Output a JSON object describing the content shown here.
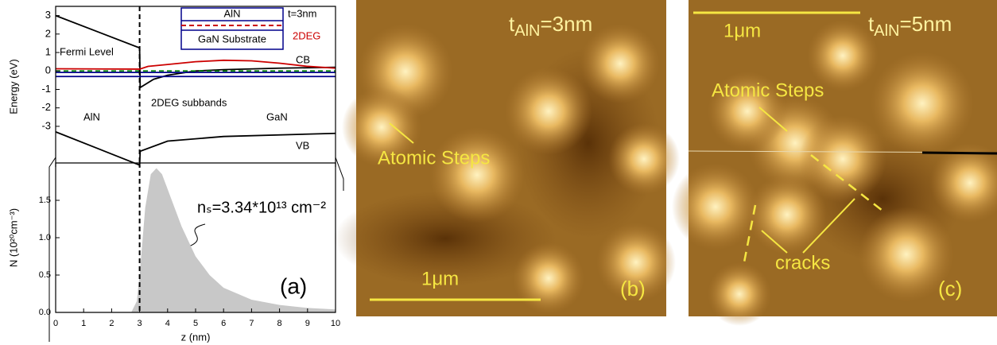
{
  "chart_data": [
    {
      "type": "line",
      "ylabel": "Energy (eV)",
      "xlim": [
        0,
        10
      ],
      "ylim": [
        -5.2,
        3.5
      ],
      "yticks": [
        -3,
        -2,
        -1,
        0,
        1,
        2,
        3
      ],
      "vline_x": 3,
      "series": [
        {
          "color": "#000000",
          "x": [
            0,
            3,
            3.02,
            3.5,
            4,
            5,
            6,
            8,
            10
          ],
          "values": [
            3.0,
            1.25,
            -0.9,
            -0.45,
            -0.23,
            0,
            0.07,
            0.15,
            0.2
          ]
        },
        {
          "color": "#000000",
          "x": [
            0,
            3,
            3.02,
            4,
            6,
            10
          ],
          "values": [
            -3.3,
            -5.1,
            -4.35,
            -3.8,
            -3.55,
            -3.38
          ]
        },
        {
          "color": "#cc0000",
          "x": [
            0,
            3,
            3.3,
            4,
            5,
            6,
            7,
            8,
            9,
            10
          ],
          "values": [
            0.12,
            0.1,
            0.25,
            0.35,
            0.5,
            0.58,
            0.55,
            0.42,
            0.25,
            0.15
          ]
        },
        {
          "color": "#00008b",
          "x": [
            0,
            10
          ],
          "values": [
            -0.3,
            -0.3
          ]
        },
        {
          "color": "#00008b",
          "x": [
            0,
            10
          ],
          "values": [
            -0.08,
            -0.08
          ]
        },
        {
          "color": "#008000",
          "dash": true,
          "x": [
            0,
            10
          ],
          "values": [
            0,
            0
          ]
        }
      ],
      "annotations": [
        "Fermi Level",
        "CB",
        "VB",
        "AlN",
        "GaN",
        "2DEG subbands"
      ],
      "inset": {
        "top": "AlN",
        "bottom": "GaN Substrate",
        "thickness": "t=3nm",
        "channel": "2DEG"
      }
    },
    {
      "type": "area",
      "xlabel": "z (nm)",
      "ylabel": "N (10²⁰cm⁻³)",
      "xlim": [
        0,
        10
      ],
      "ylim": [
        0,
        2.0
      ],
      "xticks": [
        0,
        1,
        2,
        3,
        4,
        5,
        6,
        7,
        8,
        9,
        10
      ],
      "yticks": [
        {
          "value": 0,
          "label": "0.0"
        },
        {
          "value": 0.5,
          "label": "0.5"
        },
        {
          "value": 1,
          "label": "1.0"
        },
        {
          "value": 1.5,
          "label": "1.5"
        }
      ],
      "vline_x": 3,
      "series": [
        {
          "color": "#c8c8c8",
          "x": [
            2.7,
            2.9,
            3.0,
            3.2,
            3.4,
            3.6,
            3.8,
            4.0,
            4.5,
            5,
            5.5,
            6,
            7,
            8,
            9,
            10
          ],
          "values": [
            0,
            0.15,
            0.5,
            1.4,
            1.85,
            1.93,
            1.85,
            1.65,
            1.15,
            0.75,
            0.5,
            0.33,
            0.17,
            0.1,
            0.06,
            0.04
          ]
        }
      ],
      "annotations": [
        "nₛ=3.34*10¹³ cm⁻²",
        "(a)"
      ]
    }
  ],
  "images": [
    {
      "title": {
        "main": "t",
        "sub": "AlN",
        "rest": "=3nm"
      },
      "scale": "1μm",
      "feature": "Atomic Steps",
      "label": "(b)"
    },
    {
      "title": {
        "main": "t",
        "sub": "AlN",
        "rest": "=5nm"
      },
      "scale": "1μm",
      "feature": "Atomic Steps",
      "defect": "cracks",
      "label": "(c)"
    }
  ]
}
